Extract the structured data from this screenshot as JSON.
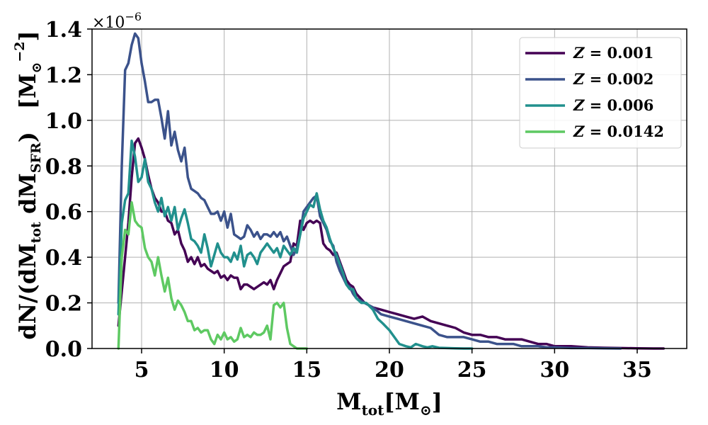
{
  "chart_data": {
    "type": "line",
    "title": "",
    "xlabel": "M_tot[M_⊙]",
    "ylabel": "dN/(dM_tot dM_SFR)  [M_⊙^−2]",
    "y_offset_text": "×10^−6",
    "xlim": [
      2,
      38
    ],
    "ylim": [
      0,
      1.4
    ],
    "xticks": [
      5,
      10,
      15,
      20,
      25,
      30,
      35
    ],
    "xtick_labels": [
      "5",
      "10",
      "15",
      "20",
      "25",
      "30",
      "35"
    ],
    "yticks": [
      0,
      0.2,
      0.4,
      0.6,
      0.8,
      1.0,
      1.2,
      1.4
    ],
    "ytick_labels": [
      "0.0",
      "0.2",
      "0.4",
      "0.6",
      "0.8",
      "1.0",
      "1.2",
      "1.4"
    ],
    "grid": true,
    "legend_position": "top-right",
    "series": [
      {
        "name": "Z = 0.001",
        "color": "#440154",
        "x": [
          3.6,
          3.8,
          4.0,
          4.2,
          4.4,
          4.6,
          4.8,
          5.0,
          5.2,
          5.4,
          5.6,
          5.8,
          6.0,
          6.2,
          6.4,
          6.6,
          6.8,
          7.0,
          7.2,
          7.4,
          7.6,
          7.8,
          8.0,
          8.2,
          8.4,
          8.6,
          8.8,
          9.0,
          9.2,
          9.4,
          9.6,
          9.8,
          10.0,
          10.2,
          10.4,
          10.6,
          10.8,
          11.0,
          11.2,
          11.4,
          11.6,
          11.8,
          12.0,
          12.2,
          12.4,
          12.6,
          12.8,
          13.0,
          13.2,
          13.4,
          13.6,
          13.8,
          14.0,
          14.2,
          14.4,
          14.6,
          14.8,
          15.0,
          15.2,
          15.4,
          15.6,
          15.8,
          16.0,
          16.2,
          16.4,
          16.6,
          16.8,
          17.0,
          17.2,
          17.4,
          17.6,
          17.8,
          18.0,
          18.5,
          19.0,
          19.5,
          20.0,
          20.5,
          21.0,
          21.5,
          22.0,
          22.5,
          23.0,
          23.5,
          24.0,
          24.5,
          25.0,
          25.5,
          26.0,
          26.5,
          27.0,
          27.5,
          28.0,
          28.5,
          29.0,
          29.5,
          30.0,
          30.5,
          31.0,
          32.0,
          33.0,
          34.0,
          35.0,
          36.0,
          36.6
        ],
        "values": [
          0.1,
          0.25,
          0.4,
          0.55,
          0.75,
          0.9,
          0.92,
          0.88,
          0.83,
          0.76,
          0.7,
          0.66,
          0.64,
          0.6,
          0.6,
          0.56,
          0.55,
          0.5,
          0.52,
          0.46,
          0.43,
          0.38,
          0.4,
          0.37,
          0.4,
          0.36,
          0.37,
          0.35,
          0.34,
          0.33,
          0.34,
          0.31,
          0.32,
          0.3,
          0.32,
          0.31,
          0.31,
          0.26,
          0.28,
          0.28,
          0.27,
          0.26,
          0.27,
          0.28,
          0.29,
          0.28,
          0.3,
          0.26,
          0.3,
          0.33,
          0.36,
          0.37,
          0.38,
          0.46,
          0.45,
          0.56,
          0.52,
          0.55,
          0.56,
          0.55,
          0.56,
          0.55,
          0.46,
          0.44,
          0.43,
          0.41,
          0.42,
          0.38,
          0.34,
          0.3,
          0.28,
          0.27,
          0.24,
          0.2,
          0.18,
          0.17,
          0.16,
          0.15,
          0.14,
          0.13,
          0.14,
          0.12,
          0.11,
          0.1,
          0.09,
          0.07,
          0.06,
          0.06,
          0.05,
          0.05,
          0.04,
          0.04,
          0.04,
          0.03,
          0.02,
          0.02,
          0.01,
          0.01,
          0.01,
          0.005,
          0.003,
          0.002,
          0.001,
          0.0,
          0.0
        ]
      },
      {
        "name": "Z = 0.002",
        "color": "#3b528b",
        "x": [
          3.6,
          3.8,
          4.0,
          4.2,
          4.4,
          4.6,
          4.8,
          5.0,
          5.2,
          5.4,
          5.6,
          5.8,
          6.0,
          6.2,
          6.4,
          6.6,
          6.8,
          7.0,
          7.2,
          7.4,
          7.6,
          7.8,
          8.0,
          8.2,
          8.4,
          8.6,
          8.8,
          9.0,
          9.2,
          9.4,
          9.6,
          9.8,
          10.0,
          10.2,
          10.4,
          10.6,
          10.8,
          11.0,
          11.2,
          11.4,
          11.6,
          11.8,
          12.0,
          12.2,
          12.4,
          12.6,
          12.8,
          13.0,
          13.2,
          13.4,
          13.6,
          13.8,
          14.0,
          14.2,
          14.4,
          14.6,
          14.8,
          15.0,
          15.2,
          15.4,
          15.6,
          15.8,
          16.0,
          16.2,
          16.4,
          16.6,
          16.8,
          17.0,
          17.2,
          17.4,
          17.6,
          17.8,
          18.0,
          18.5,
          19.0,
          19.5,
          20.0,
          20.5,
          21.0,
          21.5,
          22.0,
          22.5,
          23.0,
          23.5,
          24.0,
          24.5,
          25.0,
          25.5,
          26.0,
          26.5,
          27.0,
          27.5,
          28.0,
          28.5,
          29.0,
          29.5,
          30.0,
          31.0,
          32.0,
          33.0,
          34.0
        ],
        "values": [
          0.2,
          0.8,
          1.22,
          1.25,
          1.33,
          1.38,
          1.36,
          1.25,
          1.17,
          1.08,
          1.08,
          1.09,
          1.09,
          1.01,
          0.92,
          1.04,
          0.89,
          0.95,
          0.87,
          0.82,
          0.88,
          0.75,
          0.7,
          0.69,
          0.68,
          0.66,
          0.65,
          0.62,
          0.59,
          0.59,
          0.6,
          0.56,
          0.6,
          0.53,
          0.59,
          0.5,
          0.49,
          0.48,
          0.49,
          0.54,
          0.52,
          0.49,
          0.51,
          0.48,
          0.5,
          0.5,
          0.49,
          0.51,
          0.49,
          0.51,
          0.47,
          0.49,
          0.45,
          0.41,
          0.44,
          0.5,
          0.6,
          0.62,
          0.64,
          0.66,
          0.67,
          0.58,
          0.55,
          0.52,
          0.47,
          0.45,
          0.38,
          0.34,
          0.31,
          0.28,
          0.27,
          0.24,
          0.22,
          0.2,
          0.18,
          0.15,
          0.14,
          0.13,
          0.12,
          0.11,
          0.1,
          0.09,
          0.06,
          0.05,
          0.05,
          0.05,
          0.04,
          0.03,
          0.03,
          0.02,
          0.02,
          0.02,
          0.01,
          0.01,
          0.01,
          0.005,
          0.005,
          0.002,
          0.002,
          0.001,
          0.0
        ]
      },
      {
        "name": "Z = 0.006",
        "color": "#21908d",
        "x": [
          3.6,
          3.8,
          4.0,
          4.2,
          4.4,
          4.6,
          4.8,
          5.0,
          5.2,
          5.4,
          5.6,
          5.8,
          6.0,
          6.2,
          6.4,
          6.6,
          6.8,
          7.0,
          7.2,
          7.4,
          7.6,
          7.8,
          8.0,
          8.2,
          8.4,
          8.6,
          8.8,
          9.0,
          9.2,
          9.4,
          9.6,
          9.8,
          10.0,
          10.2,
          10.4,
          10.6,
          10.8,
          11.0,
          11.2,
          11.4,
          11.6,
          11.8,
          12.0,
          12.2,
          12.4,
          12.6,
          12.8,
          13.0,
          13.2,
          13.4,
          13.6,
          13.8,
          14.0,
          14.2,
          14.4,
          14.6,
          14.8,
          15.0,
          15.2,
          15.4,
          15.6,
          15.8,
          16.0,
          16.2,
          16.4,
          16.6,
          16.8,
          17.0,
          17.2,
          17.4,
          17.6,
          17.8,
          18.0,
          18.3,
          18.6,
          19.0,
          19.3,
          19.6,
          20.0,
          20.3,
          20.6,
          21.0,
          21.3,
          21.6,
          22.0,
          22.3,
          22.6,
          23.0,
          23.5,
          24.0,
          24.5,
          25.0
        ],
        "values": [
          0.15,
          0.55,
          0.65,
          0.68,
          0.91,
          0.84,
          0.73,
          0.75,
          0.83,
          0.73,
          0.7,
          0.64,
          0.6,
          0.66,
          0.58,
          0.62,
          0.56,
          0.62,
          0.52,
          0.57,
          0.61,
          0.55,
          0.48,
          0.47,
          0.45,
          0.42,
          0.5,
          0.44,
          0.36,
          0.41,
          0.46,
          0.42,
          0.4,
          0.4,
          0.38,
          0.42,
          0.39,
          0.45,
          0.36,
          0.41,
          0.42,
          0.4,
          0.37,
          0.42,
          0.44,
          0.46,
          0.44,
          0.42,
          0.44,
          0.4,
          0.45,
          0.43,
          0.41,
          0.44,
          0.42,
          0.5,
          0.57,
          0.6,
          0.63,
          0.62,
          0.68,
          0.61,
          0.56,
          0.53,
          0.48,
          0.44,
          0.41,
          0.37,
          0.33,
          0.28,
          0.26,
          0.26,
          0.22,
          0.2,
          0.2,
          0.17,
          0.13,
          0.11,
          0.08,
          0.05,
          0.02,
          0.01,
          0.005,
          0.02,
          0.01,
          0.005,
          0.01,
          0.003,
          0.002,
          0.001,
          0.0,
          0.0
        ]
      },
      {
        "name": "Z = 0.0142",
        "color": "#5ec962",
        "x": [
          3.6,
          3.8,
          4.0,
          4.2,
          4.4,
          4.6,
          4.8,
          5.0,
          5.2,
          5.4,
          5.6,
          5.8,
          6.0,
          6.2,
          6.4,
          6.6,
          6.8,
          7.0,
          7.2,
          7.4,
          7.6,
          7.8,
          8.0,
          8.2,
          8.4,
          8.6,
          8.8,
          9.0,
          9.2,
          9.4,
          9.6,
          9.8,
          10.0,
          10.2,
          10.4,
          10.6,
          10.8,
          11.0,
          11.2,
          11.4,
          11.6,
          11.8,
          12.0,
          12.2,
          12.4,
          12.6,
          12.8,
          13.0,
          13.2,
          13.4,
          13.6,
          13.8,
          14.0,
          14.2,
          14.4,
          14.6,
          14.8,
          15.0
        ],
        "values": [
          0.0,
          0.4,
          0.52,
          0.5,
          0.64,
          0.56,
          0.54,
          0.53,
          0.44,
          0.4,
          0.38,
          0.32,
          0.4,
          0.32,
          0.25,
          0.31,
          0.22,
          0.17,
          0.21,
          0.19,
          0.16,
          0.12,
          0.12,
          0.08,
          0.09,
          0.07,
          0.08,
          0.08,
          0.04,
          0.02,
          0.06,
          0.04,
          0.07,
          0.04,
          0.05,
          0.03,
          0.04,
          0.09,
          0.05,
          0.06,
          0.05,
          0.07,
          0.06,
          0.06,
          0.07,
          0.1,
          0.04,
          0.19,
          0.2,
          0.18,
          0.2,
          0.09,
          0.02,
          0.01,
          0.0,
          0.0,
          0.0,
          0.0
        ]
      }
    ]
  }
}
